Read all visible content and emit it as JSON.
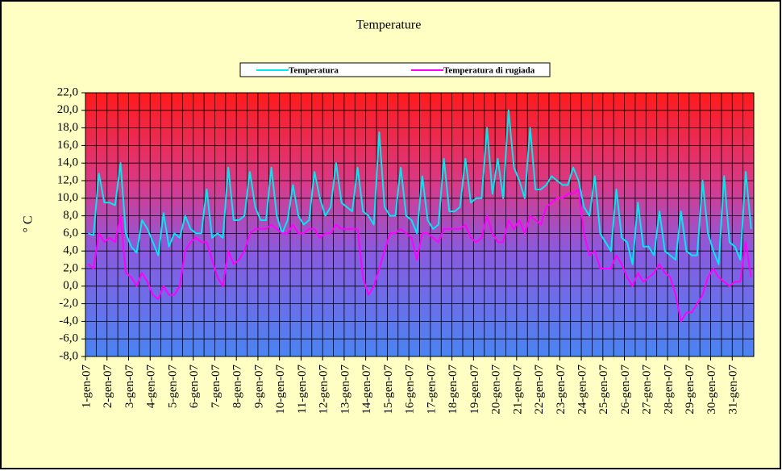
{
  "chart_data": {
    "type": "line",
    "title": "Temperature",
    "y_label": "° C",
    "legend": "top",
    "grid": true,
    "ylim": [
      -8,
      22
    ],
    "yticks": [
      {
        "value": -8,
        "label": "-8,0"
      },
      {
        "value": -6,
        "label": "-6,0"
      },
      {
        "value": -4,
        "label": "-4,0"
      },
      {
        "value": -2,
        "label": "-2,0"
      },
      {
        "value": 0,
        "label": "0,0"
      },
      {
        "value": 2,
        "label": "2,0"
      },
      {
        "value": 4,
        "label": "4,0"
      },
      {
        "value": 6,
        "label": "6,0"
      },
      {
        "value": 8,
        "label": "8,0"
      },
      {
        "value": 10,
        "label": "10,0"
      },
      {
        "value": 12,
        "label": "12,0"
      },
      {
        "value": 14,
        "label": "14,0"
      },
      {
        "value": 16,
        "label": "16,0"
      },
      {
        "value": 18,
        "label": "18,0"
      },
      {
        "value": 20,
        "label": "20,0"
      },
      {
        "value": 22,
        "label": "22,0"
      }
    ],
    "categories": [
      "1-gen-07",
      null,
      null,
      null,
      "2-gen-07",
      null,
      null,
      null,
      "3-gen-07",
      null,
      null,
      null,
      "4-gen-07",
      null,
      null,
      null,
      "5-gen-07",
      null,
      null,
      null,
      "6-gen-07",
      null,
      null,
      null,
      "7-gen-07",
      null,
      null,
      null,
      "8-gen-07",
      null,
      null,
      null,
      "9-gen-07",
      null,
      null,
      null,
      "10-gen-07",
      null,
      null,
      null,
      "11-gen-07",
      null,
      null,
      null,
      "12-gen-07",
      null,
      null,
      null,
      "13-gen-07",
      null,
      null,
      null,
      "14-gen-07",
      null,
      null,
      null,
      "15-gen-07",
      null,
      null,
      null,
      "16-gen-07",
      null,
      null,
      null,
      "17-gen-07",
      null,
      null,
      null,
      "18-gen-07",
      null,
      null,
      null,
      "19-gen-07",
      null,
      null,
      null,
      "20-gen-07",
      null,
      null,
      null,
      "21-gen-07",
      null,
      null,
      null,
      "22-gen-07",
      null,
      null,
      null,
      "23-gen-07",
      null,
      null,
      null,
      "24-gen-07",
      null,
      null,
      null,
      "25-gen-07",
      null,
      null,
      null,
      "26-gen-07",
      null,
      null,
      null,
      "27-gen-07",
      null,
      null,
      null,
      "28-gen-07",
      null,
      null,
      null,
      "29-gen-07",
      null,
      null,
      null,
      "30-gen-07",
      null,
      null,
      null,
      "31-gen-07",
      null,
      null,
      null
    ],
    "series": [
      {
        "name": "Temperatura",
        "color": "#00e8f0",
        "values": [
          6,
          5.8,
          12.8,
          9.5,
          9.5,
          9.2,
          14,
          6,
          4.5,
          3.8,
          7.5,
          6.5,
          5,
          3.5,
          8.3,
          4.5,
          6,
          5.5,
          8,
          6.5,
          6,
          6,
          11,
          5.5,
          6,
          5.5,
          13.5,
          7.5,
          7.5,
          8,
          13,
          9,
          7.5,
          7.5,
          13.5,
          8,
          6,
          7.5,
          11.5,
          8,
          7,
          7.5,
          13,
          10,
          8,
          9,
          14,
          9.5,
          9,
          8.5,
          13.5,
          8.5,
          8,
          7,
          17.5,
          9,
          8,
          8,
          13.5,
          8,
          7.5,
          6,
          12.5,
          7.5,
          6.5,
          7,
          14.5,
          8.5,
          8.5,
          9,
          14.5,
          9.5,
          10,
          10,
          18,
          10.5,
          14.5,
          10,
          20,
          13.5,
          12,
          10,
          18,
          11,
          11,
          11.5,
          12.5,
          12,
          11.5,
          11.5,
          13.5,
          12,
          9,
          8,
          12.5,
          6,
          5,
          4,
          11,
          5.5,
          5,
          2.5,
          9.5,
          4.5,
          4.5,
          3.5,
          8.5,
          4,
          3.5,
          3,
          8.5,
          4,
          3.5,
          3.5,
          12,
          6,
          4,
          2.5,
          12.5,
          5,
          4.5,
          3,
          13,
          6.5
        ]
      },
      {
        "name": "Temperatura di rugiada",
        "color": "#ff00ff",
        "values": [
          2.5,
          2,
          6,
          5,
          5.5,
          5,
          8,
          1.5,
          1,
          0,
          1.5,
          0.5,
          -1,
          -1.5,
          0,
          -1,
          -1,
          0,
          4,
          5,
          5.5,
          5,
          5,
          3,
          1,
          0,
          4,
          2.5,
          3,
          4,
          6,
          6.5,
          6.5,
          6.5,
          7,
          6.5,
          6,
          6,
          7,
          6,
          6,
          6.5,
          6.5,
          5.5,
          6,
          6,
          7,
          6.5,
          6.5,
          6.5,
          6.5,
          1,
          -1,
          0,
          2,
          4,
          6,
          6,
          6.5,
          6,
          5.5,
          3,
          6,
          6,
          5.5,
          5,
          6.5,
          6.5,
          6.5,
          6.5,
          7,
          5.5,
          5,
          5.5,
          8,
          6,
          5,
          5,
          7.5,
          6.5,
          7.5,
          6,
          8,
          7.5,
          7,
          9,
          9.5,
          10,
          10,
          10.5,
          10.5,
          11,
          6,
          3.5,
          4,
          2,
          2,
          2,
          3.5,
          2.5,
          1,
          0,
          1.5,
          0.5,
          1,
          1.5,
          2.5,
          1.5,
          1,
          -1,
          -4,
          -3,
          -3,
          -2,
          -1,
          1,
          2,
          1,
          0.5,
          0,
          0.5,
          0.5,
          5,
          1
        ]
      }
    ]
  }
}
